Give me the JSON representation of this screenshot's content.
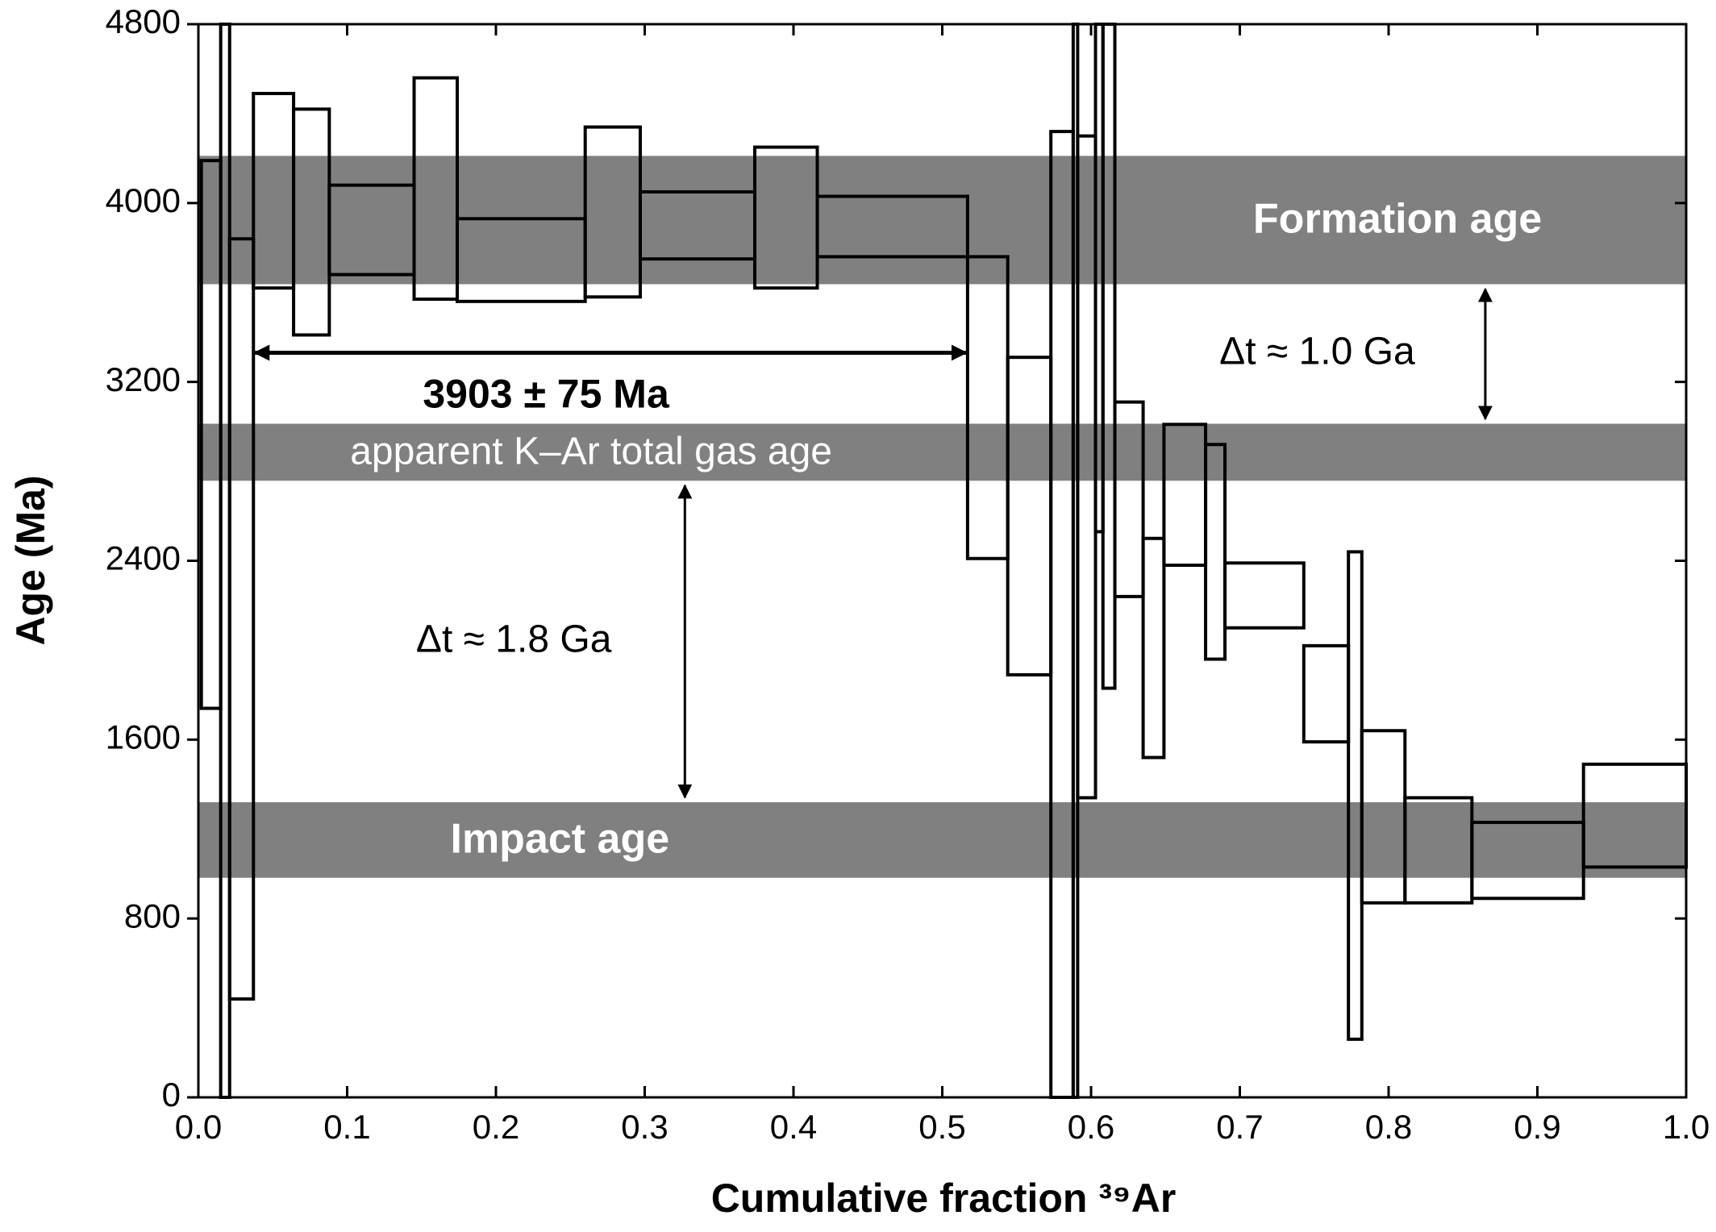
{
  "chart_data": {
    "type": "age_spectrum",
    "xlabel": "Cumulative fraction ³⁹Ar",
    "ylabel": "Age (Ma)",
    "xlim": [
      0,
      1
    ],
    "ylim": [
      0,
      4800
    ],
    "xticks": [
      {
        "value": 0,
        "label": "0.0"
      },
      0.1,
      0.2,
      0.3,
      0.4,
      0.5,
      0.6,
      0.7,
      0.8,
      0.9,
      {
        "value": 1,
        "label": "1.0"
      }
    ],
    "yticks": [
      0,
      800,
      1600,
      2400,
      3200,
      4000,
      4800
    ],
    "band_color": "#808080",
    "bands": [
      {
        "label": "Formation age",
        "low": 3637,
        "high": 4211
      },
      {
        "label": "apparent K–Ar total gas age",
        "low": 2758,
        "high": 3013
      },
      {
        "label": "Impact age",
        "low": 982,
        "high": 1320
      }
    ],
    "steps": {
      "x0": [
        0.002,
        0.015,
        0.021,
        0.037,
        0.064,
        0.088,
        0.145,
        0.174,
        0.26,
        0.297,
        0.374,
        0.416,
        0.517,
        0.544,
        0.573,
        0.588,
        0.591,
        0.603,
        0.608,
        0.616,
        0.635,
        0.649,
        0.677,
        0.69,
        0.743,
        0.773,
        0.782,
        0.811,
        0.856,
        0.931
      ],
      "x1": [
        0.015,
        0.021,
        0.037,
        0.064,
        0.088,
        0.145,
        0.174,
        0.26,
        0.297,
        0.374,
        0.416,
        0.517,
        0.544,
        0.573,
        0.588,
        0.591,
        0.603,
        0.608,
        0.616,
        0.635,
        0.649,
        0.677,
        0.69,
        0.743,
        0.773,
        0.782,
        0.811,
        0.856,
        0.931,
        1.0
      ],
      "low": [
        1740,
        0,
        440,
        3620,
        3410,
        3680,
        3570,
        3560,
        3580,
        3750,
        3620,
        3760,
        2410,
        1890,
        0,
        0,
        1340,
        2530,
        1830,
        2240,
        1520,
        2380,
        1960,
        2100,
        1590,
        260,
        870,
        870,
        890,
        1030
      ],
      "high": [
        4190,
        4800,
        3840,
        4490,
        4420,
        4080,
        4560,
        3930,
        4340,
        4050,
        4250,
        4030,
        3760,
        3310,
        4320,
        4800,
        4300,
        4800,
        4800,
        3110,
        2500,
        3010,
        2920,
        2390,
        2020,
        2440,
        1640,
        1340,
        1230,
        1490
      ]
    },
    "plateau": {
      "label": "3903 ± 75 Ma",
      "x0": 0.037,
      "x1": 0.517
    },
    "gaps": [
      {
        "label": "Δt ≈ 1.0 Ga",
        "from_band": 1,
        "to_band": 0
      },
      {
        "label": "Δt ≈ 1.8 Ga",
        "from_band": 2,
        "to_band": 1
      }
    ]
  }
}
